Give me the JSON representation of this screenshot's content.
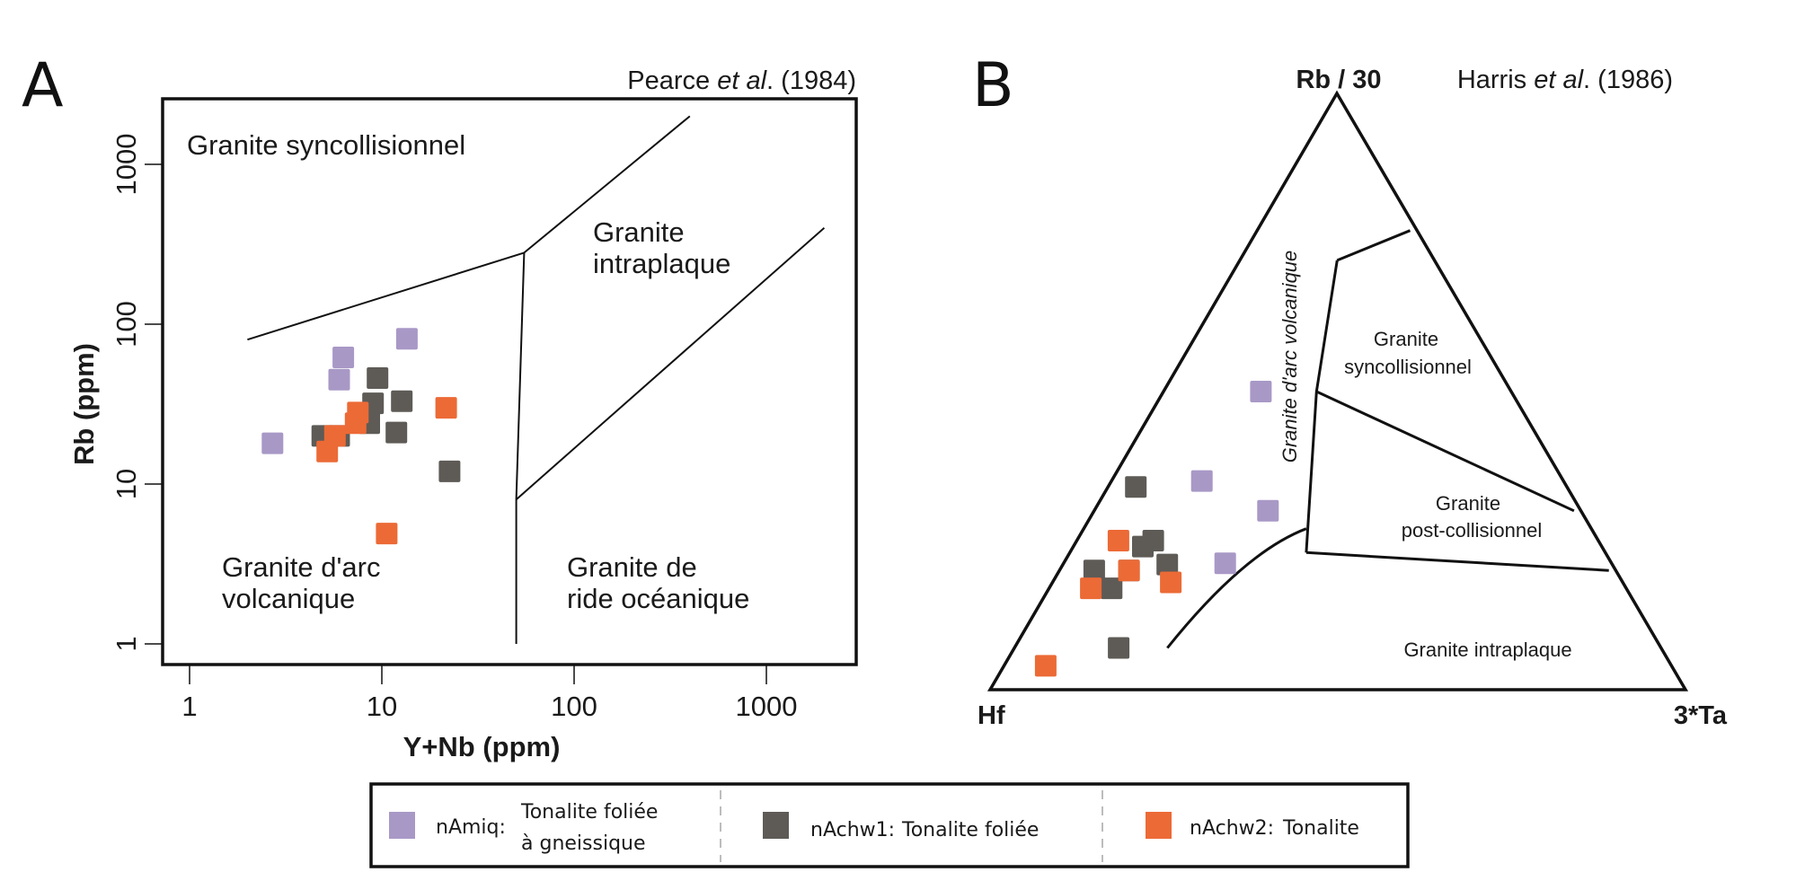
{
  "colors": {
    "nAmiq": "#a898c6",
    "nAchw1": "#5e5b57",
    "nAchw2": "#ec6a36",
    "line": "#111111"
  },
  "panel_a": {
    "letter": "A",
    "reference": {
      "author": "Pearce",
      "etal": "et al",
      "year": ". (1984)"
    },
    "regions": {
      "syncoll": "Granite syncollisionnel",
      "intraplaque_1": "Granite",
      "intraplaque_2": "intraplaque",
      "arc_1": "Granite d'arc",
      "arc_2": "volcanique",
      "ride_1": "Granite de",
      "ride_2": "ride océanique"
    }
  },
  "panel_b": {
    "letter": "B",
    "reference": {
      "author": "Harris",
      "etal": "et al",
      "year": ". (1986)"
    },
    "apex_labels": {
      "top": "Rb / 30",
      "left": "Hf",
      "right": "3*Ta"
    },
    "regions": {
      "arc": "Granite d'arc volcanique",
      "syncoll_1": "Granite",
      "syncoll_2": "syncollisionnel",
      "post_1": "Granite",
      "post_2": "post-collisionnel",
      "intraplaque": "Granite intraplaque"
    }
  },
  "legend": {
    "items": [
      {
        "series": "nAmiq",
        "code": "nAmiq:",
        "desc_1": "Tonalite foliée",
        "desc_2": "à gneissique"
      },
      {
        "series": "nAchw1",
        "code": "nAchw1:",
        "desc_1": "Tonalite foliée"
      },
      {
        "series": "nAchw2",
        "code": "nAchw2:",
        "desc_1": "Tonalite"
      }
    ]
  },
  "chart_data": [
    {
      "type": "scatter",
      "title": "Pearce et al. (1984)",
      "xlabel": "Y+Nb (ppm)",
      "ylabel": "Rb (ppm)",
      "xscale": "log",
      "yscale": "log",
      "xlim": [
        0.85,
        3000
      ],
      "ylim": [
        0.87,
        3000
      ],
      "grid": false,
      "legend_position": "bottom",
      "xticks": [
        1,
        10,
        100,
        1000
      ],
      "xtick_labels": [
        "1",
        "10",
        "100",
        "1000"
      ],
      "yticks": [
        1,
        10,
        100,
        1000
      ],
      "ytick_labels": [
        "1",
        "10",
        "100",
        "1000"
      ],
      "boundaries": [
        {
          "name": "syncoll-arc",
          "points": [
            [
              2,
              80
            ],
            [
              55,
              280
            ]
          ]
        },
        {
          "name": "syncoll-intraplaque",
          "points": [
            [
              55,
              280
            ],
            [
              400,
              2000
            ]
          ]
        },
        {
          "name": "arc-ridge",
          "points": [
            [
              55,
              280
            ],
            [
              50,
              8
            ],
            [
              50,
              1
            ]
          ]
        },
        {
          "name": "intraplaque-ridge",
          "points": [
            [
              50,
              8
            ],
            [
              2000,
              400
            ]
          ]
        }
      ],
      "series": [
        {
          "name": "nAmiq",
          "points": [
            [
              13.5,
              81
            ],
            [
              6.3,
              62
            ],
            [
              6.0,
              45
            ],
            [
              2.7,
              18
            ]
          ]
        },
        {
          "name": "nAchw1",
          "points": [
            [
              9.5,
              46
            ],
            [
              9.0,
              32
            ],
            [
              12.7,
              33
            ],
            [
              8.6,
              24
            ],
            [
              11.9,
              21
            ],
            [
              4.9,
              20
            ],
            [
              6.0,
              20
            ],
            [
              22.5,
              12
            ]
          ]
        },
        {
          "name": "nAchw2",
          "points": [
            [
              21.6,
              30
            ],
            [
              7.5,
              28
            ],
            [
              7.3,
              24
            ],
            [
              5.7,
              20
            ],
            [
              5.2,
              16
            ],
            [
              10.6,
              4.9
            ]
          ]
        }
      ]
    },
    {
      "type": "scatter",
      "subtype": "ternary",
      "title": "Harris et al. (1986)",
      "axes": [
        "Hf",
        "3*Ta",
        "Rb / 30"
      ],
      "units": "percent",
      "boundaries": [
        {
          "name": "syncoll-top",
          "points": [
            [
              1,
              22,
              77
            ],
            [
              14,
              14,
              72
            ]
          ]
        },
        {
          "name": "volcanic-arc-limit",
          "points": [
            [
              14,
              14,
              72
            ],
            [
              28,
              22,
              50
            ],
            [
              43,
              34,
              23
            ]
          ]
        },
        {
          "name": "syncoll-post",
          "points": [
            [
              28,
              22,
              50
            ],
            [
              1,
              69,
              30
            ]
          ]
        },
        {
          "name": "post-intraplaque",
          "points": [
            [
              43,
              34,
              23
            ],
            [
              1,
              79,
              20
            ]
          ]
        },
        {
          "name": "arc-intraplaque-curve",
          "points": [
            [
              41,
              32,
              27
            ],
            [
              54,
              26,
              20
            ],
            [
              71,
              22,
              7
            ]
          ]
        }
      ],
      "series": [
        {
          "name": "nAmiq",
          "points": [
            [
              36,
              14,
              50
            ],
            [
              52,
              13,
              35
            ],
            [
              45,
              25,
              30
            ],
            [
              55,
              23,
              21
            ]
          ]
        },
        {
          "name": "nAchw1",
          "points": [
            [
              62,
              4,
              34
            ],
            [
              64,
              11,
              25
            ],
            [
              66,
              10,
              24
            ],
            [
              64,
              15,
              21
            ],
            [
              75,
              5,
              20
            ],
            [
              74,
              9,
              17
            ],
            [
              70,
              10,
              20
            ],
            [
              78,
              15,
              7
            ]
          ]
        },
        {
          "name": "nAchw2",
          "points": [
            [
              69,
              6,
              25
            ],
            [
              70,
              10,
              20
            ],
            [
              65,
              17,
              18
            ],
            [
              77,
              6,
              17
            ],
            [
              90,
              6,
              4
            ]
          ]
        }
      ]
    }
  ]
}
